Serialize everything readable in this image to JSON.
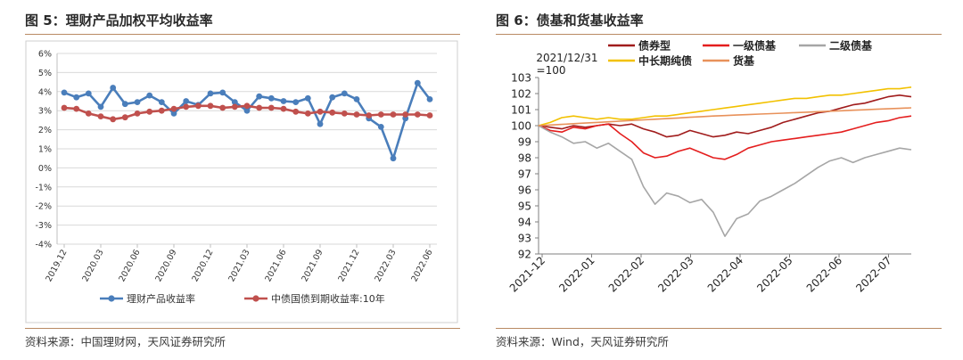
{
  "left": {
    "title": "图 5：理财产品加权平均收益率",
    "source": "资料来源：中国理财网，天风证券研究所",
    "chart_data": {
      "type": "line",
      "x_ticks": [
        "2019.12",
        "2020.03",
        "2020.06",
        "2020.09",
        "2020.12",
        "2021.03",
        "2021.06",
        "2021.09",
        "2021.12",
        "2022.03",
        "2022.06"
      ],
      "y_ticks": [
        "6%",
        "5%",
        "4%",
        "3%",
        "2%",
        "1%",
        "0%",
        "-1%",
        "-2%",
        "-3%",
        "-4%"
      ],
      "ylim": [
        -4,
        6
      ],
      "legend_position": "bottom",
      "series": [
        {
          "name": "理财产品收益率",
          "color": "#4a7ebb",
          "values": [
            3.95,
            3.7,
            3.9,
            3.2,
            4.2,
            3.35,
            3.45,
            3.8,
            3.45,
            2.85,
            3.5,
            3.3,
            3.9,
            3.95,
            3.45,
            3.0,
            3.75,
            3.65,
            3.5,
            3.45,
            3.65,
            2.3,
            3.7,
            3.9,
            3.6,
            2.6,
            2.15,
            0.5,
            2.6,
            4.45,
            3.6
          ]
        },
        {
          "name": "中债国债到期收益率:10年",
          "color": "#c0504d",
          "values": [
            3.15,
            3.1,
            2.85,
            2.7,
            2.55,
            2.65,
            2.85,
            2.95,
            3.0,
            3.1,
            3.2,
            3.25,
            3.25,
            3.15,
            3.2,
            3.25,
            3.15,
            3.15,
            3.1,
            2.95,
            2.85,
            2.95,
            2.9,
            2.85,
            2.8,
            2.75,
            2.8,
            2.8,
            2.8,
            2.8,
            2.75
          ]
        }
      ]
    }
  },
  "right": {
    "title": "图 6：债基和货基收益率",
    "source": "资料来源：Wind，天风证券研究所",
    "chart_data": {
      "type": "line",
      "annotation": [
        "2021/12/31",
        "=100"
      ],
      "x_ticks": [
        "2021-12",
        "2022-01",
        "2022-02",
        "2022-03",
        "2022-04",
        "2022-05",
        "2022-06",
        "2022-07"
      ],
      "y_ticks": [
        "103",
        "102",
        "101",
        "100",
        "99",
        "98",
        "97",
        "96",
        "95",
        "94",
        "93",
        "92"
      ],
      "ylim": [
        92,
        103
      ],
      "legend_position": "top",
      "series": [
        {
          "name": "债券型",
          "color": "#a01c1c",
          "values": [
            100,
            99.9,
            99.8,
            100.0,
            99.9,
            100.0,
            100.1,
            100.0,
            100.1,
            99.8,
            99.6,
            99.3,
            99.4,
            99.7,
            99.5,
            99.3,
            99.4,
            99.6,
            99.5,
            99.7,
            99.9,
            100.2,
            100.4,
            100.6,
            100.8,
            100.9,
            101.1,
            101.3,
            101.4,
            101.6,
            101.8,
            101.9,
            101.8
          ]
        },
        {
          "name": "一级债基",
          "color": "#e41e1e",
          "values": [
            100,
            99.7,
            99.6,
            99.9,
            99.8,
            100.0,
            100.1,
            99.5,
            99.0,
            98.3,
            98.0,
            98.1,
            98.4,
            98.6,
            98.3,
            98.0,
            97.9,
            98.2,
            98.6,
            98.8,
            99.0,
            99.1,
            99.2,
            99.3,
            99.4,
            99.5,
            99.6,
            99.8,
            100.0,
            100.2,
            100.3,
            100.5,
            100.6
          ]
        },
        {
          "name": "二级债基",
          "color": "#a6a6a6",
          "values": [
            100,
            99.6,
            99.3,
            98.9,
            99.0,
            98.6,
            98.9,
            98.4,
            97.9,
            96.2,
            95.1,
            95.8,
            95.6,
            95.2,
            95.4,
            94.6,
            93.1,
            94.2,
            94.5,
            95.3,
            95.6,
            96.0,
            96.4,
            96.9,
            97.4,
            97.8,
            98.0,
            97.7,
            98.0,
            98.2,
            98.4,
            98.6,
            98.5
          ]
        },
        {
          "name": "中长期纯债",
          "color": "#f2c100",
          "values": [
            100,
            100.2,
            100.5,
            100.6,
            100.5,
            100.4,
            100.5,
            100.4,
            100.4,
            100.5,
            100.6,
            100.6,
            100.7,
            100.8,
            100.9,
            101.0,
            101.1,
            101.2,
            101.3,
            101.4,
            101.5,
            101.6,
            101.7,
            101.7,
            101.8,
            101.9,
            101.9,
            102.0,
            102.1,
            102.2,
            102.3,
            102.3,
            102.4
          ]
        },
        {
          "name": "货基",
          "color": "#e8915a",
          "values": [
            100,
            100.04,
            100.08,
            100.12,
            100.16,
            100.2,
            100.24,
            100.28,
            100.32,
            100.36,
            100.4,
            100.44,
            100.48,
            100.52,
            100.56,
            100.6,
            100.63,
            100.66,
            100.69,
            100.72,
            100.75,
            100.78,
            100.81,
            100.84,
            100.87,
            100.9,
            100.93,
            100.96,
            100.99,
            101.02,
            101.05,
            101.08,
            101.11
          ]
        }
      ]
    }
  }
}
